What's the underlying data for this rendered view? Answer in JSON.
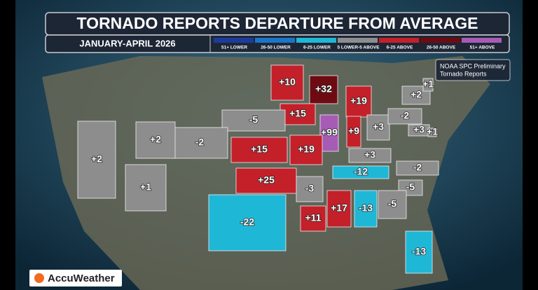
{
  "header": {
    "title": "TORNADO REPORTS DEPARTURE FROM AVERAGE",
    "subtitle": "JANUARY-APRIL 2026"
  },
  "legend": [
    {
      "label": "51+ LOWER",
      "color": "#1e3a9c"
    },
    {
      "label": "26-50 LOWER",
      "color": "#1a76c8"
    },
    {
      "label": "6-25 LOWER",
      "color": "#1fb7d6"
    },
    {
      "label": "5 LOWER-5 ABOVE",
      "color": "#8d8d8d"
    },
    {
      "label": "6-25 ABOVE",
      "color": "#c4202a"
    },
    {
      "label": "26-50 ABOVE",
      "color": "#6e0b12"
    },
    {
      "label": "51+ ABOVE",
      "color": "#a65bb5"
    }
  ],
  "note": [
    "NOAA SPC Preliminary",
    "Tornado Reports"
  ],
  "logo": "AccuWeather",
  "regions": [
    {
      "label": "+10",
      "color": "#c4202a"
    },
    {
      "label": "+32",
      "color": "#6e0b12"
    },
    {
      "label": "+19",
      "color": "#c4202a"
    },
    {
      "label": "+15",
      "color": "#c4202a"
    },
    {
      "label": "+99",
      "color": "#a65bb5"
    },
    {
      "label": "+9",
      "color": "#c4202a"
    },
    {
      "label": "+3",
      "color": "#8d8d8d"
    },
    {
      "label": "+15",
      "color": "#c4202a"
    },
    {
      "label": "+19",
      "color": "#c4202a"
    },
    {
      "label": "-5",
      "color": "#8d8d8d"
    },
    {
      "label": "-2",
      "color": "#8d8d8d"
    },
    {
      "label": "+2",
      "color": "#8d8d8d"
    },
    {
      "label": "+2",
      "color": "#8d8d8d"
    },
    {
      "label": "+1",
      "color": "#8d8d8d"
    },
    {
      "label": "+25",
      "color": "#c4202a"
    },
    {
      "label": "-3",
      "color": "#8d8d8d"
    },
    {
      "label": "+3",
      "color": "#8d8d8d"
    },
    {
      "label": "-12",
      "color": "#1fb7d6"
    },
    {
      "label": "-2",
      "color": "#8d8d8d"
    },
    {
      "label": "-5",
      "color": "#8d8d8d"
    },
    {
      "label": "-5",
      "color": "#8d8d8d"
    },
    {
      "label": "-13",
      "color": "#1fb7d6"
    },
    {
      "label": "+17",
      "color": "#c4202a"
    },
    {
      "label": "+11",
      "color": "#c4202a"
    },
    {
      "label": "-22",
      "color": "#1fb7d6"
    },
    {
      "label": "-13",
      "color": "#1fb7d6"
    },
    {
      "label": "-2",
      "color": "#8d8d8d"
    },
    {
      "label": "+2",
      "color": "#8d8d8d"
    },
    {
      "label": "+1",
      "color": "#8d8d8d"
    },
    {
      "label": "+3",
      "color": "#8d8d8d"
    },
    {
      "label": "+1",
      "color": "#8d8d8d"
    }
  ]
}
